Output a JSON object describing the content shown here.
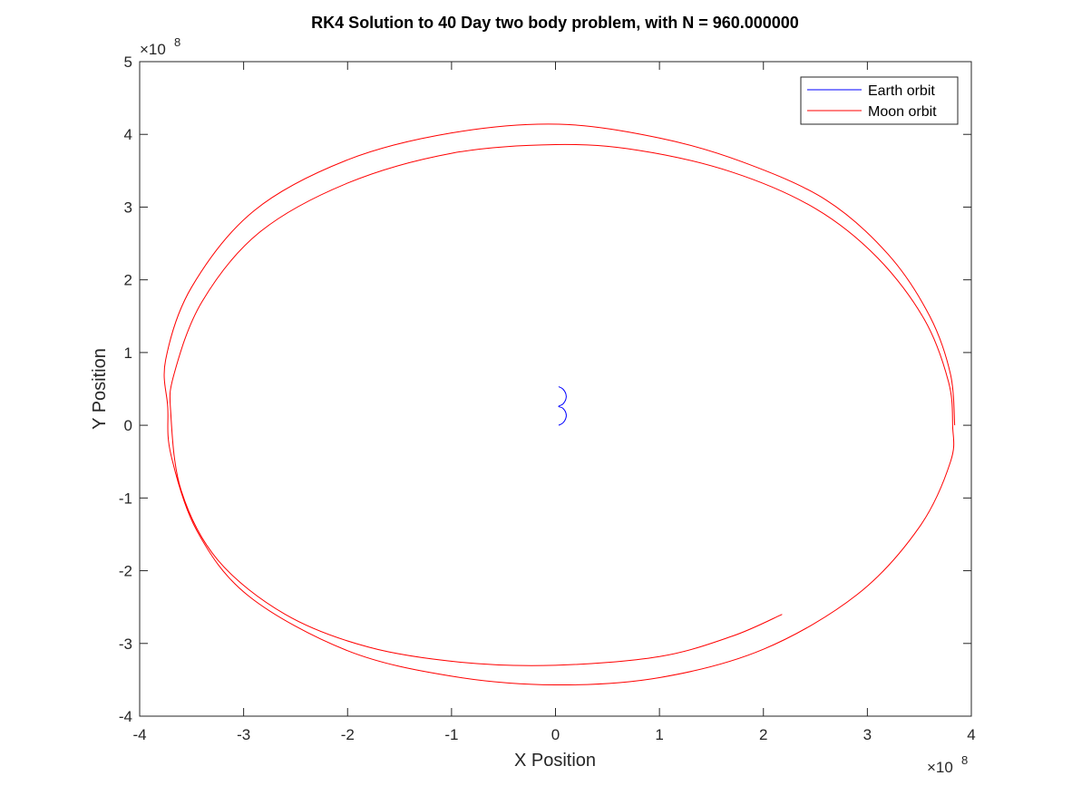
{
  "chart_data": {
    "type": "line",
    "title": "RK4 Solution to 40 Day two body problem, with N = 960.000000",
    "xlabel": "X Position",
    "ylabel": "Y Position",
    "x_exponent_label": "×10",
    "x_exponent_power": "8",
    "y_exponent_label": "×10",
    "y_exponent_power": "8",
    "xlim": [
      -4,
      4
    ],
    "ylim": [
      -4,
      5
    ],
    "xticks": [
      -4,
      -3,
      -2,
      -1,
      0,
      1,
      2,
      3,
      4
    ],
    "yticks": [
      -4,
      -3,
      -2,
      -1,
      0,
      1,
      2,
      3,
      4,
      5
    ],
    "scale": "1e8",
    "grid": false,
    "legend_position": "top-right",
    "series": [
      {
        "name": "Earth orbit",
        "color": "#0000ff",
        "points": [
          [
            0.03,
            0.0
          ],
          [
            0.07,
            0.03
          ],
          [
            0.1,
            0.1
          ],
          [
            0.1,
            0.17
          ],
          [
            0.07,
            0.235
          ],
          [
            0.03,
            0.26
          ],
          [
            0.07,
            0.29
          ],
          [
            0.1,
            0.36
          ],
          [
            0.1,
            0.43
          ],
          [
            0.07,
            0.5
          ],
          [
            0.03,
            0.53
          ]
        ]
      },
      {
        "name": "Moon orbit",
        "color": "#ff0000",
        "points": [
          [
            3.84,
            0.0
          ],
          [
            3.8,
            0.7
          ],
          [
            3.6,
            1.5
          ],
          [
            3.2,
            2.35
          ],
          [
            2.6,
            3.1
          ],
          [
            1.8,
            3.62
          ],
          [
            1.0,
            3.95
          ],
          [
            0.03,
            4.14
          ],
          [
            -1.0,
            4.02
          ],
          [
            -2.0,
            3.65
          ],
          [
            -2.9,
            2.95
          ],
          [
            -3.5,
            1.9
          ],
          [
            -3.75,
            0.9
          ],
          [
            -3.73,
            0.25
          ],
          [
            -3.7,
            -0.4
          ],
          [
            -3.45,
            -1.45
          ],
          [
            -2.95,
            -2.35
          ],
          [
            -2.0,
            -3.1
          ],
          [
            -1.0,
            -3.45
          ],
          [
            0.0,
            -3.57
          ],
          [
            1.0,
            -3.47
          ],
          [
            2.0,
            -3.08
          ],
          [
            2.9,
            -2.33
          ],
          [
            3.5,
            -1.4
          ],
          [
            3.8,
            -0.5
          ],
          [
            3.82,
            0.0
          ],
          [
            3.78,
            0.6
          ],
          [
            3.55,
            1.45
          ],
          [
            3.1,
            2.3
          ],
          [
            2.5,
            2.98
          ],
          [
            1.7,
            3.48
          ],
          [
            0.8,
            3.78
          ],
          [
            0.0,
            3.86
          ],
          [
            -1.0,
            3.74
          ],
          [
            -2.0,
            3.33
          ],
          [
            -2.85,
            2.65
          ],
          [
            -3.4,
            1.7
          ],
          [
            -3.67,
            0.7
          ],
          [
            -3.7,
            0.15
          ],
          [
            -3.6,
            -0.9
          ],
          [
            -3.25,
            -1.85
          ],
          [
            -2.6,
            -2.6
          ],
          [
            -1.8,
            -3.05
          ],
          [
            -0.9,
            -3.26
          ],
          [
            0.0,
            -3.3
          ],
          [
            1.0,
            -3.18
          ],
          [
            1.7,
            -2.9
          ],
          [
            2.18,
            -2.6
          ]
        ]
      }
    ]
  }
}
